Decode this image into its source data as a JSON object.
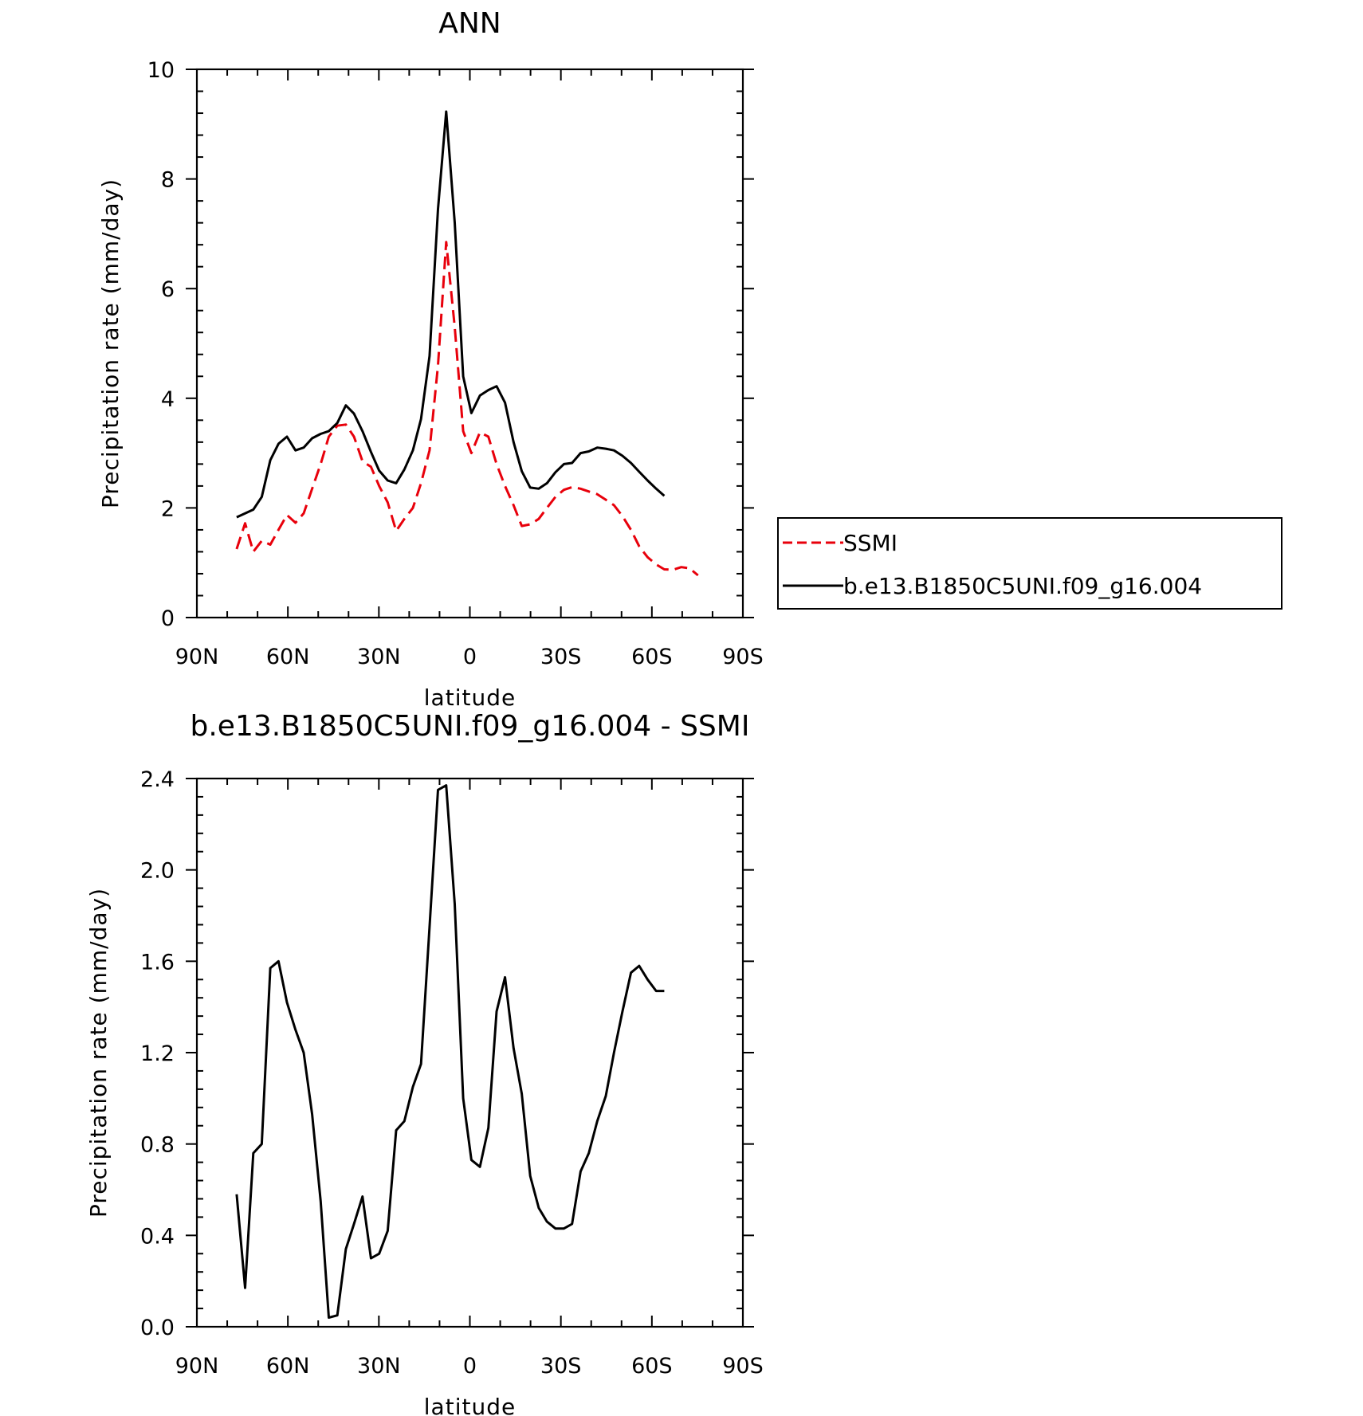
{
  "chart_data": [
    {
      "type": "line",
      "title": "ANN",
      "xlabel": "latitude",
      "ylabel": "Precipitation rate (mm/day)",
      "x_tick_values": [
        90,
        60,
        30,
        0,
        -30,
        -60,
        -90
      ],
      "x_tick_labels": [
        "90N",
        "60N",
        "30N",
        "0",
        "30S",
        "60S",
        "90S"
      ],
      "xlim": [
        90,
        -90
      ],
      "ylim": [
        0,
        10
      ],
      "y_ticks": [
        0,
        2,
        4,
        6,
        8,
        10
      ],
      "y_tick_labels": [
        "0",
        "2",
        "4",
        "6",
        "8",
        "10"
      ],
      "legend_position": "right",
      "series": [
        {
          "name": "SSMI",
          "color": "#e8000b",
          "dash": "dashed",
          "x": [
            76.9,
            74.1,
            71.4,
            68.6,
            65.8,
            63.1,
            60.3,
            57.5,
            54.8,
            52.0,
            49.2,
            46.5,
            43.7,
            40.9,
            38.2,
            35.4,
            32.6,
            29.9,
            27.1,
            24.3,
            21.6,
            18.8,
            16.1,
            13.3,
            10.5,
            7.8,
            5.0,
            2.2,
            -0.5,
            -3.3,
            -6.1,
            -8.8,
            -11.6,
            -14.4,
            -17.1,
            -19.9,
            -22.7,
            -25.4,
            -28.2,
            -31.0,
            -33.7,
            -36.5,
            -39.2,
            -42.0,
            -44.8,
            -47.5,
            -50.3,
            -53.1,
            -55.8,
            -58.6,
            -61.4,
            -64.1,
            -66.9,
            -69.7,
            -72.4,
            -75.2
          ],
          "y": [
            1.25,
            1.72,
            1.2,
            1.4,
            1.33,
            1.6,
            1.87,
            1.73,
            1.9,
            2.35,
            2.8,
            3.3,
            3.5,
            3.52,
            3.3,
            2.85,
            2.75,
            2.4,
            2.1,
            1.58,
            1.8,
            2.0,
            2.45,
            3.05,
            4.6,
            6.85,
            5.3,
            3.4,
            3.0,
            3.38,
            3.3,
            2.8,
            2.4,
            2.05,
            1.67,
            1.7,
            1.8,
            2.0,
            2.2,
            2.33,
            2.38,
            2.35,
            2.3,
            2.25,
            2.15,
            2.05,
            1.85,
            1.6,
            1.3,
            1.1,
            0.97,
            0.88,
            0.87,
            0.92,
            0.9,
            0.77
          ]
        },
        {
          "name": "b.e13.B1850C5UNI.f09_g16.004",
          "color": "#000000",
          "dash": "solid",
          "x": [
            76.9,
            74.1,
            71.4,
            68.6,
            65.8,
            63.1,
            60.3,
            57.5,
            54.8,
            52.0,
            49.2,
            46.5,
            43.7,
            40.9,
            38.2,
            35.4,
            32.6,
            29.9,
            27.1,
            24.3,
            21.6,
            18.8,
            16.1,
            13.3,
            10.5,
            7.8,
            5.0,
            2.2,
            -0.5,
            -3.3,
            -6.1,
            -8.8,
            -11.6,
            -14.4,
            -17.1,
            -19.9,
            -22.7,
            -25.4,
            -28.2,
            -31.0,
            -33.7,
            -36.5,
            -39.2,
            -42.0,
            -44.8,
            -47.5,
            -50.3,
            -53.1,
            -55.8,
            -58.6,
            -61.4,
            -64.1
          ],
          "y": [
            1.83,
            1.9,
            1.97,
            2.2,
            2.87,
            3.17,
            3.3,
            3.05,
            3.1,
            3.27,
            3.35,
            3.4,
            3.55,
            3.87,
            3.72,
            3.4,
            3.02,
            2.68,
            2.5,
            2.45,
            2.7,
            3.05,
            3.62,
            4.77,
            7.45,
            9.23,
            7.2,
            4.4,
            3.73,
            4.05,
            4.15,
            4.22,
            3.92,
            3.2,
            2.67,
            2.37,
            2.35,
            2.45,
            2.65,
            2.8,
            2.82,
            3.0,
            3.03,
            3.1,
            3.08,
            3.05,
            2.95,
            2.82,
            2.66,
            2.5,
            2.35,
            2.22
          ]
        }
      ]
    },
    {
      "type": "line",
      "title": "b.e13.B1850C5UNI.f09_g16.004 - SSMI",
      "xlabel": "latitude",
      "ylabel": "Precipitation rate (mm/day)",
      "x_tick_values": [
        90,
        60,
        30,
        0,
        -30,
        -60,
        -90
      ],
      "x_tick_labels": [
        "90N",
        "60N",
        "30N",
        "0",
        "30S",
        "60S",
        "90S"
      ],
      "xlim": [
        90,
        -90
      ],
      "ylim": [
        0,
        2.4
      ],
      "y_ticks": [
        0,
        0.4,
        0.8,
        1.2,
        1.6,
        2.0,
        2.4
      ],
      "y_tick_labels": [
        "0.0",
        "0.4",
        "0.8",
        "1.2",
        "1.6",
        "2.0",
        "2.4"
      ],
      "series": [
        {
          "color": "#000000",
          "dash": "solid",
          "x": [
            76.9,
            74.1,
            71.4,
            68.6,
            65.8,
            63.1,
            60.3,
            57.5,
            54.8,
            52.0,
            49.2,
            46.5,
            43.7,
            40.9,
            38.2,
            35.4,
            32.6,
            29.9,
            27.1,
            24.3,
            21.6,
            18.8,
            16.1,
            13.3,
            10.5,
            7.8,
            5.0,
            2.2,
            -0.5,
            -3.3,
            -6.1,
            -8.8,
            -11.6,
            -14.4,
            -17.1,
            -19.9,
            -22.7,
            -25.4,
            -28.2,
            -31.0,
            -33.7,
            -36.5,
            -39.2,
            -42.0,
            -44.8,
            -47.5,
            -50.3,
            -53.1,
            -55.8,
            -58.6,
            -61.4,
            -64.1
          ],
          "y": [
            0.58,
            0.17,
            0.76,
            0.8,
            1.57,
            1.6,
            1.42,
            1.3,
            1.2,
            0.93,
            0.55,
            0.04,
            0.05,
            0.34,
            0.45,
            0.57,
            0.3,
            0.32,
            0.42,
            0.86,
            0.9,
            1.05,
            1.15,
            1.75,
            2.35,
            2.37,
            1.85,
            1.0,
            0.73,
            0.7,
            0.87,
            1.38,
            1.53,
            1.22,
            1.02,
            0.66,
            0.52,
            0.46,
            0.43,
            0.43,
            0.45,
            0.68,
            0.76,
            0.9,
            1.01,
            1.2,
            1.38,
            1.55,
            1.58,
            1.52,
            1.47,
            1.47
          ]
        }
      ]
    }
  ]
}
